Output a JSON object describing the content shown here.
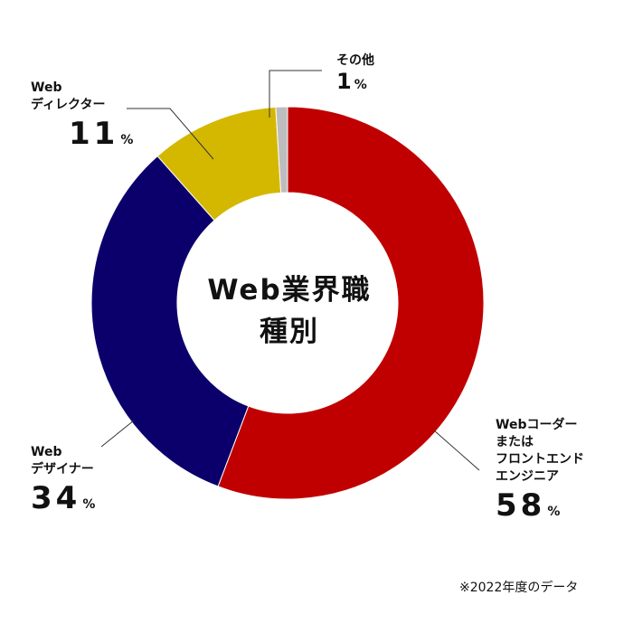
{
  "chart_data": {
    "type": "pie",
    "title": "Web業界職種別",
    "categories": [
      "Webコーダー\nまたは\nフロントエンド\nエンジニア",
      "Web\nデザイナー",
      "Web\nディレクター",
      "その他"
    ],
    "values": [
      58,
      34,
      11,
      1
    ],
    "value_labels": [
      "58",
      "34",
      "11",
      "1"
    ],
    "unit": "%",
    "colors": [
      "#c00000",
      "#0b006b",
      "#d4b800",
      "#bdbdbd"
    ],
    "note": "※2022年度のデータ"
  }
}
